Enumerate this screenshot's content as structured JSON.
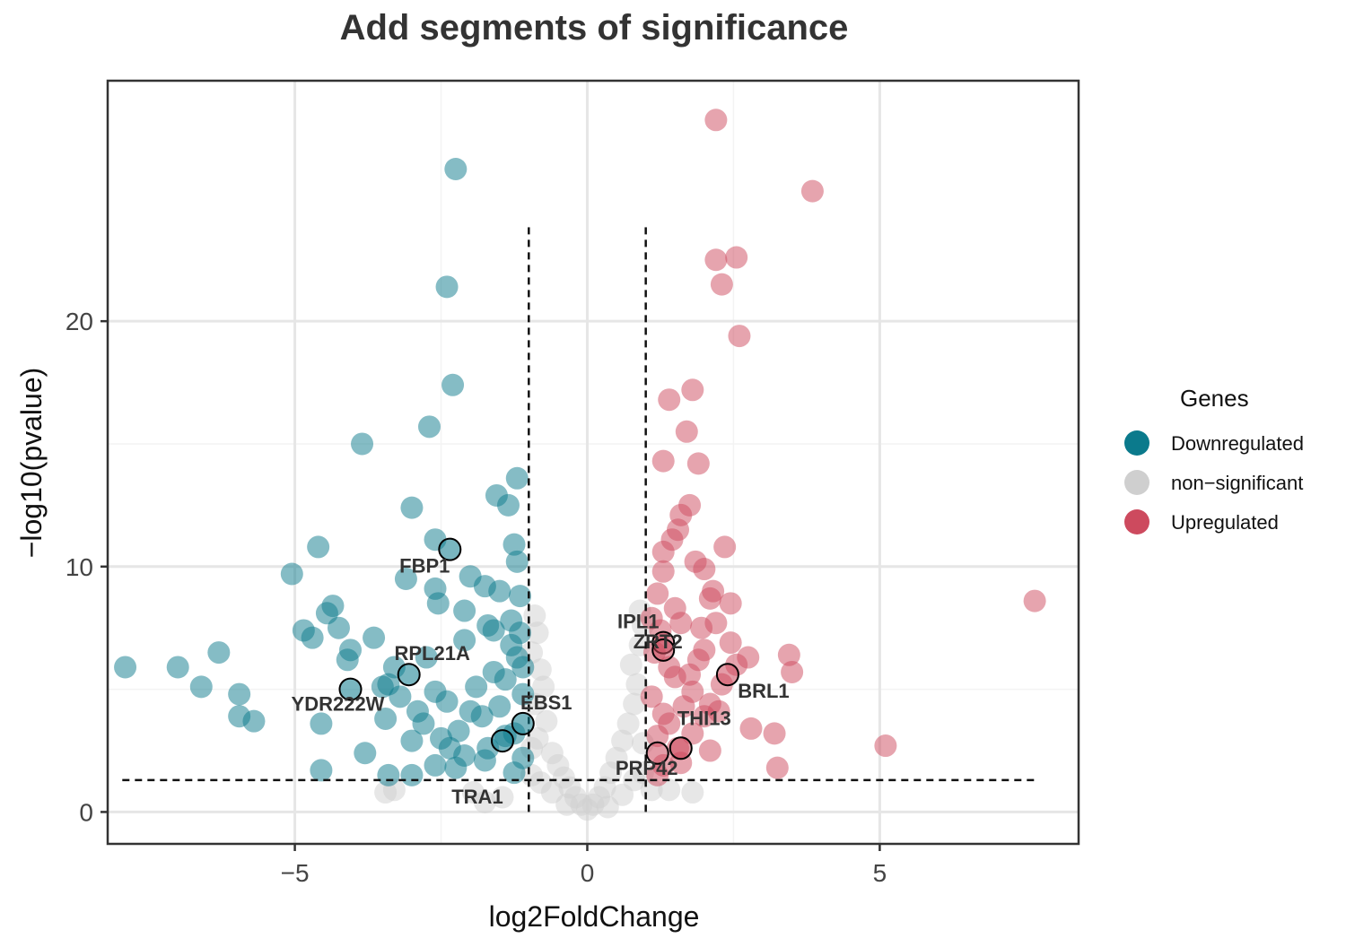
{
  "chart_data": {
    "type": "scatter",
    "title": "Add segments of significance",
    "xlabel": "log2FoldChange",
    "ylabel": "−log10(pvalue)",
    "xlim": [
      -8.2,
      8.4
    ],
    "ylim": [
      -1.3,
      29.8
    ],
    "xticks": [
      -5,
      0,
      5
    ],
    "xtick_labels": [
      "−5",
      "0",
      "5"
    ],
    "yticks": [
      0,
      10,
      20
    ],
    "ytick_labels": [
      "0",
      "10",
      "20"
    ],
    "grid": true,
    "thresholds": {
      "log2fc_low": -1,
      "log2fc_high": 1,
      "neglog10p": 1.3,
      "vline_top": 24
    },
    "legend": {
      "title": "Genes",
      "position": "right",
      "items": [
        {
          "label": "Downregulated",
          "color": "#0b7a8c"
        },
        {
          "label": "non−significant",
          "color": "#cfcfcf"
        },
        {
          "label": "Upregulated",
          "color": "#cd4a5e"
        }
      ]
    },
    "series": [
      {
        "name": "Downregulated",
        "color": "#0b7a8c",
        "points": [
          [
            -2.25,
            26.2
          ],
          [
            -2.4,
            21.4
          ],
          [
            -2.3,
            17.4
          ],
          [
            -2.7,
            15.7
          ],
          [
            -3.85,
            15.0
          ],
          [
            -1.2,
            13.6
          ],
          [
            -1.55,
            12.9
          ],
          [
            -1.35,
            12.5
          ],
          [
            -3.0,
            12.4
          ],
          [
            -2.6,
            11.1
          ],
          [
            -4.6,
            10.8
          ],
          [
            -1.25,
            10.9
          ],
          [
            -1.2,
            10.2
          ],
          [
            -5.05,
            9.7
          ],
          [
            -2.0,
            9.6
          ],
          [
            -3.1,
            9.5
          ],
          [
            -2.6,
            9.1
          ],
          [
            -1.75,
            9.2
          ],
          [
            -1.5,
            9.0
          ],
          [
            -1.15,
            8.8
          ],
          [
            -4.35,
            8.4
          ],
          [
            -4.45,
            8.1
          ],
          [
            -2.55,
            8.5
          ],
          [
            -2.1,
            8.2
          ],
          [
            -4.85,
            7.4
          ],
          [
            -4.25,
            7.5
          ],
          [
            -1.7,
            7.6
          ],
          [
            -1.3,
            7.8
          ],
          [
            -1.6,
            7.4
          ],
          [
            -4.7,
            7.1
          ],
          [
            -3.65,
            7.1
          ],
          [
            -2.1,
            7.0
          ],
          [
            -4.05,
            6.6
          ],
          [
            -6.3,
            6.5
          ],
          [
            -4.1,
            6.2
          ],
          [
            -7.9,
            5.9
          ],
          [
            -7.0,
            5.9
          ],
          [
            -2.75,
            6.3
          ],
          [
            -3.3,
            5.9
          ],
          [
            -6.6,
            5.1
          ],
          [
            -5.95,
            4.8
          ],
          [
            -3.5,
            5.1
          ],
          [
            -3.4,
            5.2
          ],
          [
            -5.95,
            3.9
          ],
          [
            -5.7,
            3.7
          ],
          [
            -4.55,
            3.6
          ],
          [
            -3.45,
            3.8
          ],
          [
            -3.8,
            2.4
          ],
          [
            -3.0,
            2.9
          ],
          [
            -2.1,
            2.3
          ],
          [
            -4.55,
            1.7
          ],
          [
            -3.4,
            1.5
          ],
          [
            -3.0,
            1.5
          ],
          [
            -2.25,
            1.8
          ],
          [
            -2.6,
            1.9
          ],
          [
            -1.7,
            2.6
          ],
          [
            -2.4,
            4.5
          ],
          [
            -1.9,
            5.1
          ],
          [
            -1.4,
            5.4
          ],
          [
            -1.2,
            6.3
          ],
          [
            -1.8,
            3.9
          ],
          [
            -2.8,
            3.6
          ],
          [
            -1.5,
            4.3
          ],
          [
            -1.25,
            3.2
          ],
          [
            -2.0,
            4.1
          ],
          [
            -2.2,
            3.3
          ],
          [
            -1.1,
            2.2
          ],
          [
            -1.1,
            4.8
          ],
          [
            -2.6,
            4.9
          ],
          [
            -1.3,
            6.8
          ],
          [
            -1.6,
            5.7
          ],
          [
            -2.9,
            4.1
          ],
          [
            -1.15,
            7.3
          ],
          [
            -1.4,
            3.1
          ],
          [
            -2.5,
            3.0
          ],
          [
            -1.75,
            2.1
          ],
          [
            -3.2,
            4.7
          ],
          [
            -1.1,
            5.9
          ],
          [
            -1.25,
            1.6
          ],
          [
            -2.35,
            2.6
          ]
        ]
      },
      {
        "name": "non−significant",
        "color": "#cfcfcf",
        "points": [
          [
            -0.9,
            8.0
          ],
          [
            -0.85,
            7.3
          ],
          [
            -0.95,
            6.5
          ],
          [
            -0.8,
            5.8
          ],
          [
            -0.75,
            5.1
          ],
          [
            -0.9,
            4.4
          ],
          [
            -0.7,
            3.7
          ],
          [
            -0.85,
            3.0
          ],
          [
            -0.6,
            2.4
          ],
          [
            -0.5,
            1.9
          ],
          [
            -0.4,
            1.4
          ],
          [
            -0.3,
            1.0
          ],
          [
            -0.2,
            0.6
          ],
          [
            -0.1,
            0.3
          ],
          [
            0.0,
            0.1
          ],
          [
            0.1,
            0.3
          ],
          [
            0.2,
            0.6
          ],
          [
            0.3,
            1.0
          ],
          [
            0.4,
            1.6
          ],
          [
            0.5,
            2.2
          ],
          [
            0.6,
            2.9
          ],
          [
            0.7,
            3.6
          ],
          [
            0.8,
            4.4
          ],
          [
            0.85,
            5.2
          ],
          [
            0.75,
            6.0
          ],
          [
            0.9,
            6.8
          ],
          [
            0.95,
            7.6
          ],
          [
            0.9,
            8.2
          ],
          [
            -3.3,
            0.9
          ],
          [
            -3.45,
            0.8
          ],
          [
            -1.95,
            0.8
          ],
          [
            -1.75,
            0.4
          ],
          [
            -1.45,
            0.6
          ],
          [
            1.1,
            0.9
          ],
          [
            1.4,
            0.9
          ],
          [
            1.8,
            0.8
          ],
          [
            -0.6,
            0.8
          ],
          [
            0.6,
            0.7
          ],
          [
            -0.35,
            0.3
          ],
          [
            0.35,
            0.2
          ],
          [
            -0.95,
            2.6
          ],
          [
            -0.95,
            1.5
          ],
          [
            0.95,
            2.8
          ],
          [
            0.95,
            1.6
          ],
          [
            -0.8,
            1.2
          ],
          [
            0.8,
            1.3
          ]
        ]
      },
      {
        "name": "Upregulated",
        "color": "#cd4a5e",
        "points": [
          [
            2.2,
            28.2
          ],
          [
            3.85,
            25.3
          ],
          [
            2.55,
            22.6
          ],
          [
            2.2,
            22.5
          ],
          [
            2.3,
            21.5
          ],
          [
            2.6,
            19.4
          ],
          [
            1.8,
            17.2
          ],
          [
            1.4,
            16.8
          ],
          [
            1.7,
            15.5
          ],
          [
            1.3,
            14.3
          ],
          [
            1.9,
            14.2
          ],
          [
            1.75,
            12.5
          ],
          [
            1.6,
            12.1
          ],
          [
            1.55,
            11.5
          ],
          [
            1.45,
            11.1
          ],
          [
            2.35,
            10.8
          ],
          [
            1.3,
            10.6
          ],
          [
            1.85,
            10.2
          ],
          [
            2.0,
            9.9
          ],
          [
            1.3,
            9.8
          ],
          [
            2.15,
            9.0
          ],
          [
            1.2,
            8.9
          ],
          [
            2.1,
            8.7
          ],
          [
            2.45,
            8.5
          ],
          [
            7.65,
            8.6
          ],
          [
            1.5,
            8.3
          ],
          [
            1.6,
            7.7
          ],
          [
            2.2,
            7.7
          ],
          [
            1.95,
            7.5
          ],
          [
            1.25,
            7.4
          ],
          [
            2.75,
            6.3
          ],
          [
            3.45,
            6.4
          ],
          [
            3.5,
            5.7
          ],
          [
            2.55,
            6.0
          ],
          [
            2.3,
            5.2
          ],
          [
            1.5,
            5.5
          ],
          [
            1.8,
            4.9
          ],
          [
            2.1,
            4.4
          ],
          [
            1.3,
            4.0
          ],
          [
            2.8,
            3.4
          ],
          [
            3.2,
            3.2
          ],
          [
            1.8,
            3.2
          ],
          [
            5.1,
            2.7
          ],
          [
            3.25,
            1.8
          ],
          [
            2.1,
            2.5
          ],
          [
            1.6,
            2.0
          ],
          [
            1.2,
            1.5
          ],
          [
            1.4,
            3.6
          ],
          [
            1.65,
            4.3
          ],
          [
            2.0,
            3.9
          ],
          [
            1.9,
            6.2
          ],
          [
            1.15,
            6.5
          ],
          [
            1.4,
            5.9
          ],
          [
            2.0,
            6.6
          ],
          [
            1.1,
            4.7
          ],
          [
            1.3,
            1.9
          ],
          [
            1.2,
            3.1
          ],
          [
            1.75,
            5.6
          ],
          [
            2.25,
            4.1
          ],
          [
            1.55,
            2.6
          ],
          [
            2.45,
            6.9
          ],
          [
            1.1,
            7.9
          ]
        ]
      }
    ],
    "highlighted": [
      {
        "label": "FBP1",
        "x": -2.35,
        "y": 10.7
      },
      {
        "label": "RPL21A",
        "x": -3.05,
        "y": 5.6
      },
      {
        "label": "YDR222W",
        "x": -4.05,
        "y": 5.0
      },
      {
        "label": "EBS1",
        "x": -1.1,
        "y": 3.6
      },
      {
        "label": "TRA1",
        "x": -1.45,
        "y": 2.9
      },
      {
        "label": "IPL1",
        "x": 1.3,
        "y": 6.9
      },
      {
        "label": "ZRT2",
        "x": 1.3,
        "y": 6.6
      },
      {
        "label": "BRL1",
        "x": 2.4,
        "y": 5.6
      },
      {
        "label": "THI13",
        "x": 1.6,
        "y": 2.6
      },
      {
        "label": "PRP42",
        "x": 1.2,
        "y": 2.4
      }
    ]
  }
}
